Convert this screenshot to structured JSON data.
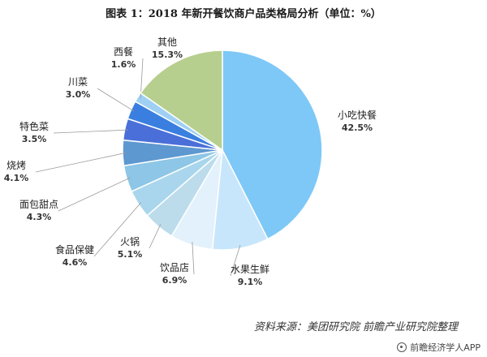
{
  "chart_data": {
    "type": "pie",
    "title": "图表 1：2018 年新开餐饮商户品类格局分析（单位：%）",
    "slices": [
      {
        "name": "小吃快餐",
        "value": 42.5,
        "value_label": "42.5%",
        "color": "#7ec8f7"
      },
      {
        "name": "水果生鲜",
        "value": 9.1,
        "value_label": "9.1%",
        "color": "#c8e6fb"
      },
      {
        "name": "饮品店",
        "value": 6.9,
        "value_label": "6.9%",
        "color": "#e2f1fb"
      },
      {
        "name": "火锅",
        "value": 5.1,
        "value_label": "5.1%",
        "color": "#bcdcec"
      },
      {
        "name": "食品保健",
        "value": 4.6,
        "value_label": "4.6%",
        "color": "#a9d6ec"
      },
      {
        "name": "面包甜点",
        "value": 4.3,
        "value_label": "4.3%",
        "color": "#8dc6e6"
      },
      {
        "name": "烧烤",
        "value": 4.1,
        "value_label": "4.1%",
        "color": "#5e98d0"
      },
      {
        "name": "特色菜",
        "value": 3.5,
        "value_label": "3.5%",
        "color": "#4a6fd8"
      },
      {
        "name": "川菜",
        "value": 3.0,
        "value_label": "3.0%",
        "color": "#3a7fe0"
      },
      {
        "name": "西餐",
        "value": 1.6,
        "value_label": "1.6%",
        "color": "#9fd0f4"
      },
      {
        "name": "其他",
        "value": 15.3,
        "value_label": "15.3%",
        "color": "#b7cf8e"
      }
    ],
    "source": "资料来源：美团研究院 前瞻产业研究院整理",
    "watermark": "前瞻经济学人APP"
  }
}
